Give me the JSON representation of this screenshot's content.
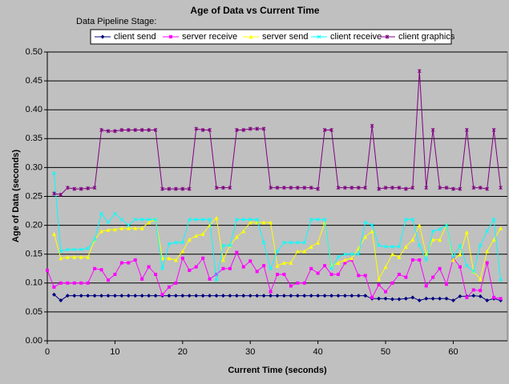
{
  "chart_data": {
    "type": "line",
    "title": "Age of Data  vs  Current Time",
    "legend_title": "Data Pipeline Stage:",
    "xlabel": "Current Time (seconds)",
    "ylabel": "Age of Data (seconds)",
    "legend": "top",
    "grid": true,
    "xlim": [
      0,
      68
    ],
    "xticks": [
      0,
      10,
      20,
      30,
      40,
      50,
      60
    ],
    "ylim": [
      0,
      0.5
    ],
    "yticks": [
      {
        "value": 0,
        "label": "0.00"
      },
      {
        "value": 0.05,
        "label": "0.05"
      },
      {
        "value": 0.1,
        "label": "0.10"
      },
      {
        "value": 0.15,
        "label": "0.15"
      },
      {
        "value": 0.2,
        "label": "0.20"
      },
      {
        "value": 0.25,
        "label": "0.25"
      },
      {
        "value": 0.3,
        "label": "0.30"
      },
      {
        "value": 0.35,
        "label": "0.35"
      },
      {
        "value": 0.4,
        "label": "0.40"
      },
      {
        "value": 0.45,
        "label": "0.45"
      },
      {
        "value": 0.5,
        "label": "0.50"
      }
    ],
    "x": [
      0,
      1,
      2,
      3,
      4,
      5,
      6,
      7,
      8,
      9,
      10,
      11,
      12,
      13,
      14,
      15,
      16,
      17,
      18,
      19,
      20,
      21,
      22,
      23,
      24,
      25,
      26,
      27,
      28,
      29,
      30,
      31,
      32,
      33,
      34,
      35,
      36,
      37,
      38,
      39,
      40,
      41,
      42,
      43,
      44,
      45,
      46,
      47,
      48,
      49,
      50,
      51,
      52,
      53,
      54,
      55,
      56,
      57,
      58,
      59,
      60,
      61,
      62,
      63,
      64,
      65,
      66,
      67
    ],
    "series": [
      {
        "name": "client send",
        "color": "#000080",
        "marker": "diamond",
        "values": [
          null,
          0.08,
          0.07,
          0.078,
          0.078,
          0.078,
          0.078,
          0.078,
          0.078,
          0.078,
          0.078,
          0.078,
          0.078,
          0.078,
          0.078,
          0.078,
          0.078,
          0.078,
          0.078,
          0.078,
          0.078,
          0.078,
          0.078,
          0.078,
          0.078,
          0.078,
          0.078,
          0.078,
          0.078,
          0.078,
          0.078,
          0.078,
          0.078,
          0.078,
          0.078,
          0.078,
          0.078,
          0.078,
          0.078,
          0.078,
          0.078,
          0.078,
          0.078,
          0.078,
          0.078,
          0.078,
          0.078,
          0.078,
          0.073,
          0.073,
          0.073,
          0.072,
          0.072,
          0.073,
          0.075,
          0.07,
          0.073,
          0.073,
          0.073,
          0.073,
          0.07,
          0.077,
          0.077,
          0.078,
          0.077,
          0.07,
          0.073,
          0.07
        ]
      },
      {
        "name": "server receive",
        "color": "#ff00ff",
        "marker": "square",
        "values": [
          0.122,
          0.093,
          0.1,
          0.1,
          0.1,
          0.1,
          0.1,
          0.125,
          0.123,
          0.105,
          0.115,
          0.135,
          0.135,
          0.14,
          0.107,
          0.128,
          0.115,
          0.08,
          0.093,
          0.1,
          0.143,
          0.122,
          0.128,
          0.143,
          0.107,
          0.115,
          0.125,
          0.125,
          0.153,
          0.128,
          0.138,
          0.12,
          0.13,
          0.085,
          0.115,
          0.115,
          0.095,
          0.1,
          0.1,
          0.125,
          0.117,
          0.13,
          0.115,
          0.115,
          0.135,
          0.14,
          0.113,
          0.113,
          0.075,
          0.097,
          0.085,
          0.1,
          0.115,
          0.11,
          0.14,
          0.14,
          0.095,
          0.11,
          0.125,
          0.098,
          0.143,
          0.128,
          0.075,
          0.088,
          0.087,
          0.135,
          0.075,
          0.073
        ]
      },
      {
        "name": "server send",
        "color": "#ffff00",
        "marker": "triangle",
        "values": [
          null,
          0.185,
          0.143,
          0.145,
          0.145,
          0.145,
          0.145,
          0.175,
          0.19,
          0.192,
          0.193,
          0.195,
          0.195,
          0.195,
          0.195,
          0.205,
          0.21,
          0.143,
          0.143,
          0.14,
          0.155,
          0.175,
          0.182,
          0.185,
          0.2,
          0.213,
          0.14,
          0.165,
          0.18,
          0.19,
          0.205,
          0.205,
          0.205,
          0.205,
          0.13,
          0.135,
          0.135,
          0.155,
          0.155,
          0.163,
          0.17,
          0.205,
          0.13,
          0.135,
          0.14,
          0.143,
          0.16,
          0.18,
          0.19,
          0.107,
          0.128,
          0.15,
          0.145,
          0.163,
          0.175,
          0.2,
          0.15,
          0.175,
          0.175,
          0.2,
          0.14,
          0.15,
          0.188,
          0.12,
          0.107,
          0.155,
          0.175,
          0.195
        ]
      },
      {
        "name": "client receive",
        "color": "#00ffff",
        "marker": "x",
        "values": [
          null,
          0.29,
          0.155,
          0.158,
          0.158,
          0.158,
          0.16,
          0.175,
          0.22,
          0.205,
          0.22,
          0.21,
          0.2,
          0.21,
          0.21,
          0.21,
          0.21,
          0.125,
          0.168,
          0.17,
          0.17,
          0.21,
          0.21,
          0.21,
          0.21,
          0.105,
          0.165,
          0.165,
          0.21,
          0.21,
          0.21,
          0.21,
          0.17,
          0.125,
          0.155,
          0.17,
          0.17,
          0.17,
          0.17,
          0.21,
          0.21,
          0.21,
          0.125,
          0.145,
          0.15,
          0.15,
          0.15,
          0.205,
          0.2,
          0.165,
          0.163,
          0.163,
          0.163,
          0.21,
          0.21,
          0.165,
          0.14,
          0.19,
          0.193,
          0.2,
          0.145,
          0.165,
          0.13,
          0.12,
          0.165,
          0.19,
          0.21,
          0.105
        ]
      },
      {
        "name": "client graphics",
        "color": "#800080",
        "marker": "star",
        "values": [
          null,
          0.255,
          0.253,
          0.265,
          0.263,
          0.263,
          0.264,
          0.265,
          0.365,
          0.363,
          0.363,
          0.365,
          0.365,
          0.365,
          0.365,
          0.365,
          0.365,
          0.263,
          0.263,
          0.263,
          0.263,
          0.263,
          0.367,
          0.365,
          0.365,
          0.265,
          0.265,
          0.265,
          0.365,
          0.365,
          0.367,
          0.367,
          0.367,
          0.265,
          0.265,
          0.265,
          0.265,
          0.265,
          0.265,
          0.265,
          0.263,
          0.365,
          0.365,
          0.265,
          0.265,
          0.265,
          0.265,
          0.265,
          0.372,
          0.263,
          0.265,
          0.265,
          0.265,
          0.263,
          0.265,
          0.467,
          0.265,
          0.365,
          0.265,
          0.265,
          0.263,
          0.263,
          0.365,
          0.265,
          0.265,
          0.263,
          0.365,
          0.265
        ]
      }
    ]
  }
}
